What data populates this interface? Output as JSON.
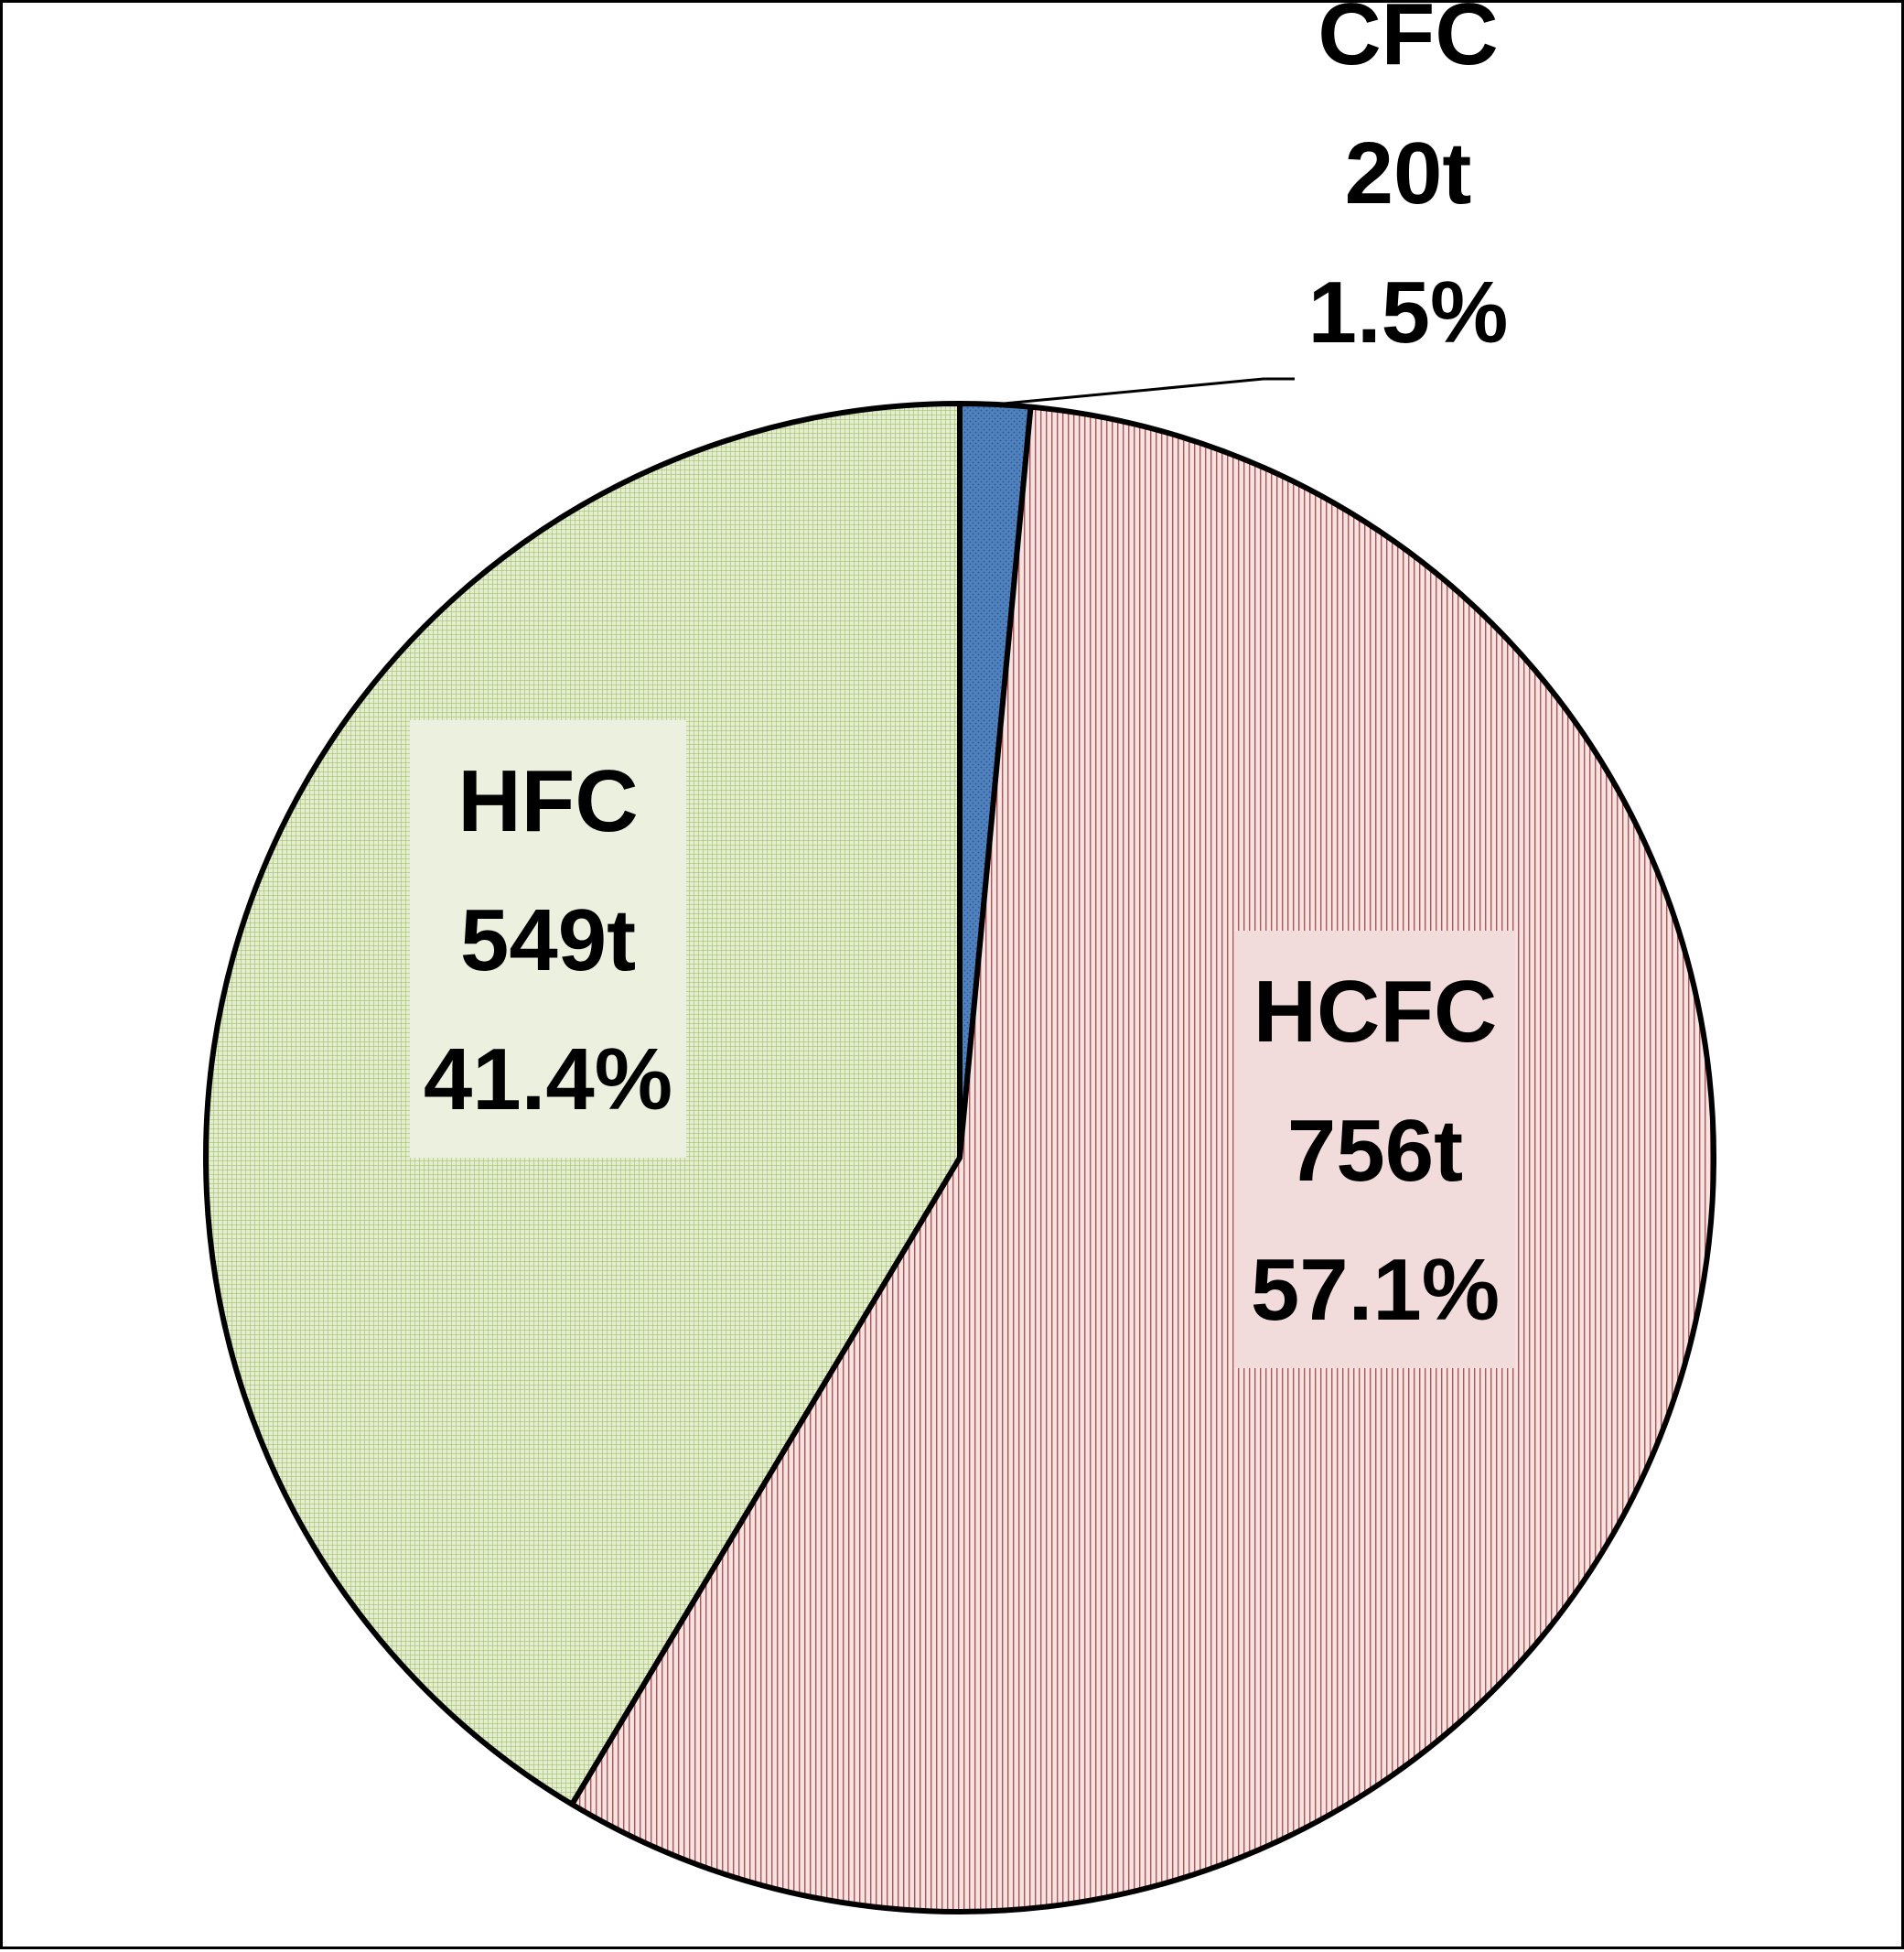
{
  "chart_data": {
    "type": "pie",
    "start_angle_deg": 0,
    "direction": "clockwise",
    "slices": [
      {
        "category": "CFC",
        "amount": "20t",
        "percent_label": "1.5%",
        "value": 1.5,
        "color": "#4F81BD",
        "label_bg": ""
      },
      {
        "category": "HCFC",
        "amount": "756t",
        "percent_label": "57.1%",
        "value": 57.1,
        "color": "#F2DCDB",
        "label_bg": "#F2DCDB"
      },
      {
        "category": "HFC",
        "amount": "549t",
        "percent_label": "41.4%",
        "value": 41.4,
        "color": "#D7E4BD",
        "label_bg": "#EBF1DE"
      }
    ],
    "pattern_colors": {
      "CFC": "#2F5597",
      "HCFC": "#C0504D",
      "HFC": "#9BBB59"
    },
    "legend": "none",
    "grid": false
  }
}
